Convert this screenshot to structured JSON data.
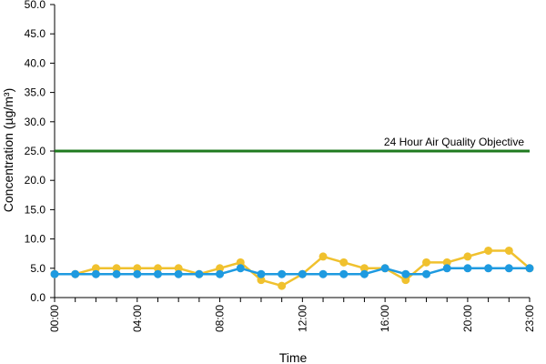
{
  "chart_data": {
    "type": "line",
    "title": "",
    "xlabel": "Time",
    "ylabel": "Concentration (µg/m³)",
    "ylim": [
      0,
      50
    ],
    "y_ticks": [
      "0.0",
      "5.0",
      "10.0",
      "15.0",
      "20.0",
      "25.0",
      "30.0",
      "35.0",
      "40.0",
      "45.0",
      "50.0"
    ],
    "x_tick_labels": [
      "00:00",
      "04:00",
      "08:00",
      "12:00",
      "16:00",
      "20:00",
      "23:00"
    ],
    "x_tick_hours": [
      0,
      4,
      8,
      12,
      16,
      20,
      23
    ],
    "grid": false,
    "legend": "none",
    "x": [
      "00:00",
      "01:00",
      "02:00",
      "03:00",
      "04:00",
      "05:00",
      "06:00",
      "07:00",
      "08:00",
      "09:00",
      "10:00",
      "11:00",
      "12:00",
      "13:00",
      "14:00",
      "15:00",
      "16:00",
      "17:00",
      "18:00",
      "19:00",
      "20:00",
      "21:00",
      "22:00",
      "23:00"
    ],
    "series": [
      {
        "color": "#f0c12e",
        "values": [
          4,
          4,
          5,
          5,
          5,
          5,
          5,
          4,
          5,
          6,
          3,
          2,
          4,
          7,
          6,
          5,
          5,
          3,
          6,
          6,
          7,
          8,
          8,
          5
        ]
      },
      {
        "color": "#1e9ae0",
        "values": [
          4,
          4,
          4,
          4,
          4,
          4,
          4,
          4,
          4,
          5,
          4,
          4,
          4,
          4,
          4,
          4,
          5,
          4,
          4,
          5,
          5,
          5,
          5,
          5
        ]
      }
    ],
    "reference_line": {
      "value": 25,
      "label": "24 Hour Air Quality Objective",
      "color": "#1f7a1f"
    }
  }
}
